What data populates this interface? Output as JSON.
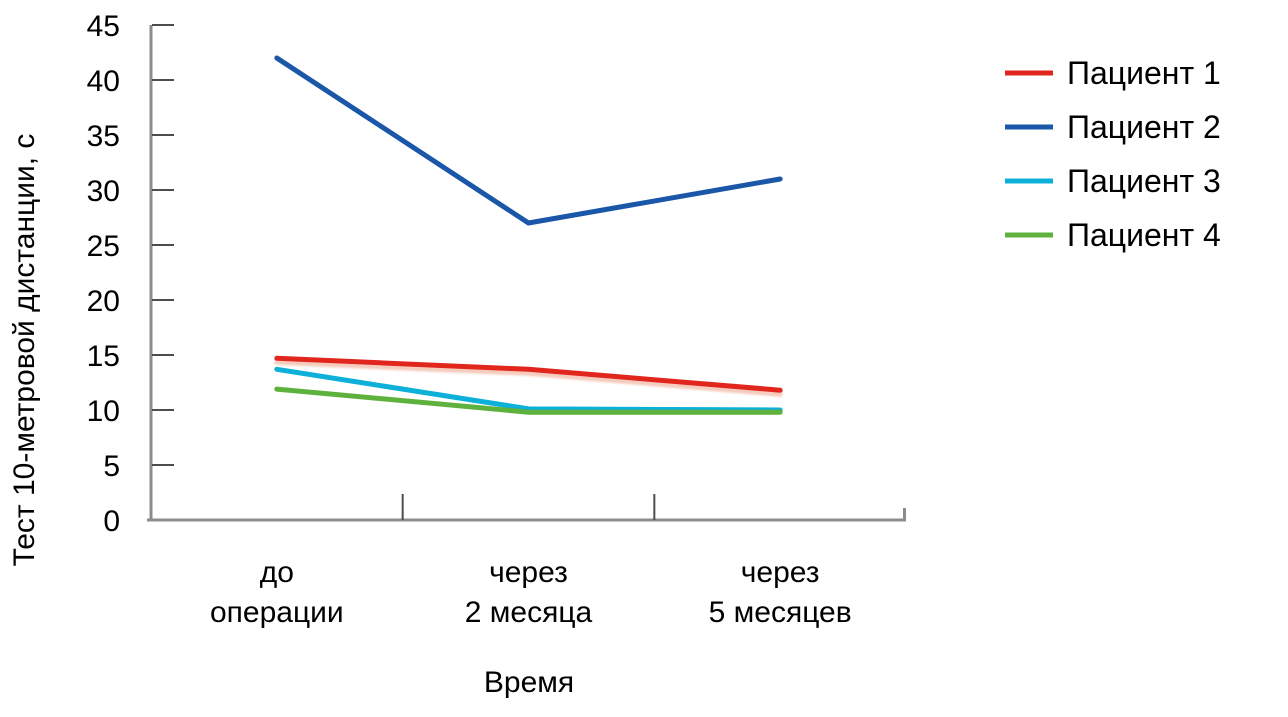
{
  "chart_data": {
    "type": "line",
    "title": "",
    "categories": [
      "до операции",
      "через 2 месяца",
      "через 5 месяцев"
    ],
    "xlabel": "Время",
    "ylabel": "Тест 10-метровой дистанции, с",
    "y_ticks": [
      0,
      5,
      10,
      15,
      20,
      25,
      30,
      35,
      40,
      45
    ],
    "ylim": [
      0,
      45
    ],
    "grid": false,
    "legend_position": "right",
    "series": [
      {
        "name": "Пациент 1",
        "color": "#e1261d",
        "values": [
          14.7,
          13.7,
          11.8
        ]
      },
      {
        "name": "Пациент 2",
        "color": "#1a57a8",
        "values": [
          42,
          27,
          31
        ]
      },
      {
        "name": "Пациент 3",
        "color": "#0cb0d8",
        "values": [
          13.7,
          10.1,
          10
        ]
      },
      {
        "name": "Пациент 4",
        "color": "#5eb13c",
        "values": [
          11.9,
          9.8,
          9.8
        ]
      }
    ]
  },
  "colors": {
    "axis": "#8c8c8c",
    "tick": "#4d4d4d",
    "text": "#000000",
    "background": "#ffffff"
  }
}
